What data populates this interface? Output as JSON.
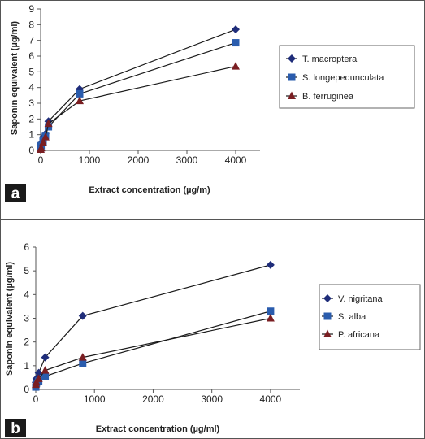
{
  "chart_data": [
    {
      "panel_label": "a",
      "type": "line",
      "xlabel": "Extract concentration (µg/m)",
      "ylabel": "Saponin equivalent (µg/ml)",
      "xlim": [
        0,
        4500
      ],
      "ylim": [
        0,
        9
      ],
      "x_ticks": [
        0,
        1000,
        2000,
        3000,
        4000
      ],
      "y_ticks": [
        0,
        1,
        2,
        3,
        4,
        5,
        6,
        7,
        8,
        9
      ],
      "grid": false,
      "legend_position": "right",
      "series": [
        {
          "name": "T. macroptera",
          "marker": "diamond",
          "color": "#1f2d7a",
          "x": [
            0,
            10,
            50,
            100,
            160,
            800,
            4000
          ],
          "y": [
            0.35,
            0.45,
            0.85,
            1.05,
            1.85,
            3.9,
            7.7
          ]
        },
        {
          "name": "S. longepedunculata",
          "marker": "square",
          "color": "#2a5cad",
          "x": [
            0,
            10,
            50,
            100,
            160,
            800,
            4000
          ],
          "y": [
            0.15,
            0.3,
            0.6,
            0.95,
            1.5,
            3.6,
            6.85
          ]
        },
        {
          "name": "B. ferruginea",
          "marker": "triangle",
          "color": "#7a1e22",
          "x": [
            0,
            10,
            50,
            100,
            160,
            800,
            4000
          ],
          "y": [
            0.05,
            0.15,
            0.5,
            0.85,
            1.7,
            3.15,
            5.35
          ]
        }
      ]
    },
    {
      "panel_label": "b",
      "type": "line",
      "xlabel": "Extract concentration (µg/ml)",
      "ylabel": "Saponin equivalent (µg/ml)",
      "xlim": [
        0,
        4500
      ],
      "ylim": [
        0,
        6
      ],
      "x_ticks": [
        0,
        1000,
        2000,
        3000,
        4000
      ],
      "y_ticks": [
        0,
        1,
        2,
        3,
        4,
        5,
        6
      ],
      "grid": false,
      "legend_position": "right",
      "series": [
        {
          "name": "V. nigritana",
          "marker": "diamond",
          "color": "#1f2d7a",
          "x": [
            0,
            10,
            50,
            160,
            800,
            4000
          ],
          "y": [
            0.3,
            0.45,
            0.7,
            1.35,
            3.1,
            5.25
          ]
        },
        {
          "name": "S. alba",
          "marker": "square",
          "color": "#2a5cad",
          "x": [
            0,
            10,
            50,
            160,
            800,
            4000
          ],
          "y": [
            0.1,
            0.25,
            0.35,
            0.55,
            1.1,
            3.3
          ]
        },
        {
          "name": "P. africana",
          "marker": "triangle",
          "color": "#7a1e22",
          "x": [
            0,
            10,
            50,
            160,
            800,
            4000
          ],
          "y": [
            0.2,
            0.3,
            0.45,
            0.8,
            1.35,
            3.0
          ]
        }
      ]
    }
  ]
}
